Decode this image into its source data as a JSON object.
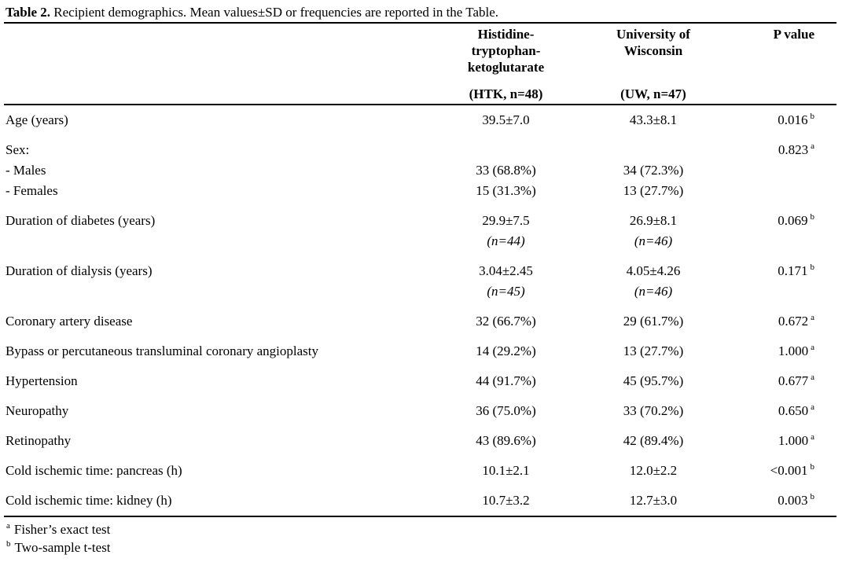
{
  "title": {
    "label": "Table 2.",
    "text": "Recipient demographics. Mean values±SD or frequencies are reported in the Table."
  },
  "columns": {
    "htk": {
      "lines": [
        "Histidine-",
        "tryptophan-",
        "ketoglutarate"
      ],
      "sub": "(HTK, n=48)"
    },
    "uw": {
      "lines": [
        "University of",
        "Wisconsin"
      ],
      "sub": "(UW, n=47)"
    },
    "p": {
      "label": "P value"
    }
  },
  "rows": [
    {
      "label": [
        "Age (years)"
      ],
      "htk": [
        "39.5±7.0"
      ],
      "uw": [
        "43.3±8.1"
      ],
      "p": "0.016",
      "p_sup": "b"
    },
    {
      "label": [
        "Sex:",
        "- Males",
        "- Females"
      ],
      "htk": [
        "",
        "33 (68.8%)",
        "15 (31.3%)"
      ],
      "uw": [
        "",
        "34 (72.3%)",
        "13 (27.7%)"
      ],
      "p": "0.823",
      "p_sup": "a"
    },
    {
      "label": [
        "Duration of diabetes (years)"
      ],
      "htk": [
        "29.9±7.5",
        {
          "text": "(n=44)",
          "italic": true
        }
      ],
      "uw": [
        "26.9±8.1",
        {
          "text": "(n=46)",
          "italic": true
        }
      ],
      "p": "0.069",
      "p_sup": "b"
    },
    {
      "label": [
        "Duration of dialysis (years)"
      ],
      "htk": [
        "3.04±2.45",
        {
          "text": "(n=45)",
          "italic": true
        }
      ],
      "uw": [
        "4.05±4.26",
        {
          "text": "(n=46)",
          "italic": true
        }
      ],
      "p": "0.171",
      "p_sup": "b"
    },
    {
      "label": [
        "Coronary artery disease"
      ],
      "htk": [
        "32 (66.7%)"
      ],
      "uw": [
        "29 (61.7%)"
      ],
      "p": "0.672",
      "p_sup": "a"
    },
    {
      "label": [
        "Bypass or percutaneous transluminal coronary angioplasty"
      ],
      "htk": [
        "14 (29.2%)"
      ],
      "uw": [
        "13 (27.7%)"
      ],
      "p": "1.000",
      "p_sup": "a"
    },
    {
      "label": [
        "Hypertension"
      ],
      "htk": [
        "44 (91.7%)"
      ],
      "uw": [
        "45 (95.7%)"
      ],
      "p": "0.677",
      "p_sup": "a"
    },
    {
      "label": [
        "Neuropathy"
      ],
      "htk": [
        "36 (75.0%)"
      ],
      "uw": [
        "33 (70.2%)"
      ],
      "p": "0.650",
      "p_sup": "a"
    },
    {
      "label": [
        "Retinopathy"
      ],
      "htk": [
        "43 (89.6%)"
      ],
      "uw": [
        "42 (89.4%)"
      ],
      "p": "1.000",
      "p_sup": "a"
    },
    {
      "label": [
        "Cold ischemic time: pancreas (h)"
      ],
      "htk": [
        "10.1±2.1"
      ],
      "uw": [
        "12.0±2.2"
      ],
      "p": "<0.001",
      "p_sup": "b"
    },
    {
      "label": [
        "Cold ischemic time: kidney (h)"
      ],
      "htk": [
        "10.7±3.2"
      ],
      "uw": [
        "12.7±3.0"
      ],
      "p": "0.003",
      "p_sup": "b"
    }
  ],
  "footnotes": [
    {
      "marker": "a",
      "text": "Fisher’s exact test"
    },
    {
      "marker": "b",
      "text": "Two-sample t-test"
    }
  ]
}
